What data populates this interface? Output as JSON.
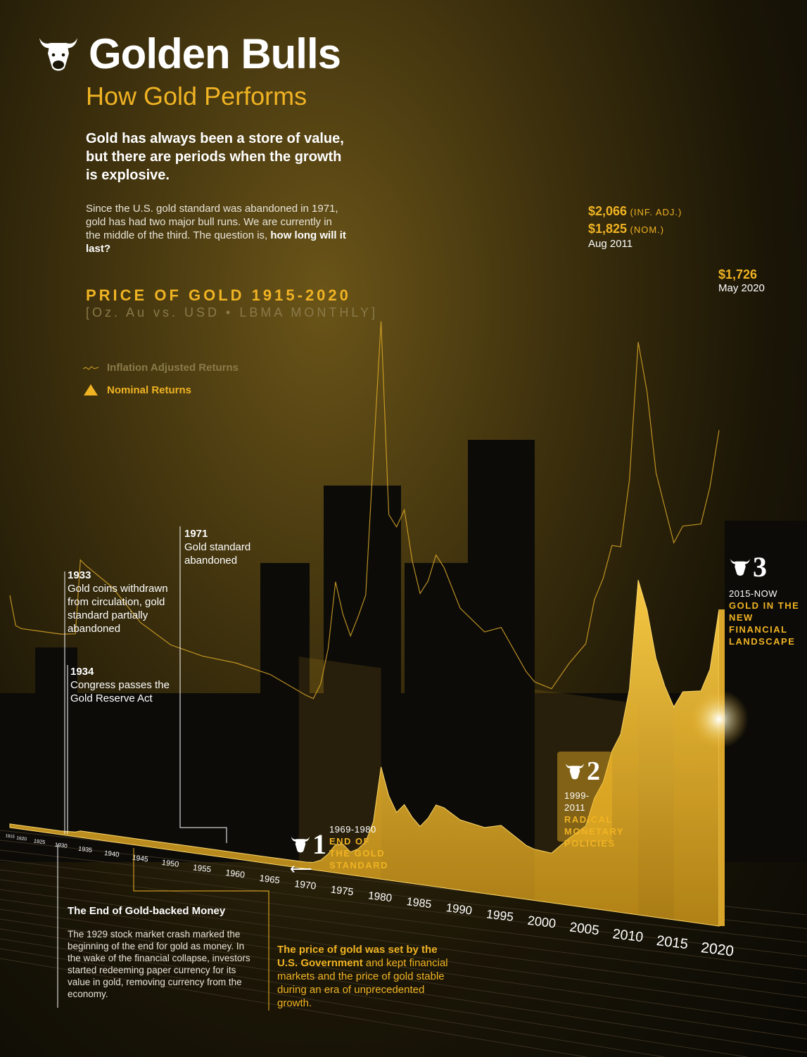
{
  "header": {
    "title": "Golden Bulls",
    "subtitle": "How Gold Performs",
    "lead": "Gold has always been a store of value, but there are periods when the growth is explosive.",
    "intro_pre": "Since the U.S. gold standard was abandoned in 1971, gold has had two major bull runs. We are currently in the middle of the third. The question is,",
    "intro_bold": "how long will it last?"
  },
  "chart_header": {
    "title": "PRICE OF GOLD 1915-2020",
    "subtitle": "[Oz. Au vs. USD • LBMA MONTHLY]"
  },
  "legend": {
    "inflation": "Inflation Adjusted Returns",
    "nominal": "Nominal Returns"
  },
  "annotations": {
    "a1933": {
      "year": "1933",
      "text": "Gold coins withdrawn from circulation, gold standard partially abandoned"
    },
    "a1934": {
      "year": "1934",
      "text": "Congress passes the Gold Reserve Act"
    },
    "a1971": {
      "year": "1971",
      "text": "Gold standard abandoned"
    }
  },
  "peaks": {
    "peak2011": {
      "inf_value": "$2,066",
      "inf_label": "(INF. ADJ.)",
      "nom_value": "$1,825",
      "nom_label": "(NOM.)",
      "date": "Aug 2011"
    },
    "peak2020": {
      "value": "$1,726",
      "date": "May 2020"
    }
  },
  "periods": [
    {
      "number": "1",
      "years": "1969-1980",
      "name": "END OF THE GOLD STANDARD"
    },
    {
      "number": "2",
      "years": "1999-2011",
      "name": "RADICAL MONETARY POLICIES"
    },
    {
      "number": "3",
      "years": "2015-NOW",
      "name": "GOLD IN THE NEW FINANCIAL LANDSCAPE"
    }
  ],
  "notes": {
    "end_title": "The End of Gold-backed Money",
    "end_text": "The 1929 stock market crash marked the beginning of the end for gold as money. In the wake of the financial collapse, investors started redeeming paper currency for its value in gold, removing currency from the economy.",
    "gov_bold": "The price of gold was set by the U.S. Government",
    "gov_text": "and kept financial markets and the price of gold stable during an era of unprecedented growth."
  },
  "colors": {
    "gold": "#f0b323",
    "gold_dark": "#c8901a",
    "background": "#0d0b06"
  },
  "chart_data": {
    "type": "area",
    "title": "PRICE OF GOLD 1915-2020",
    "subtitle": "[Oz. Au vs. USD • LBMA MONTHLY]",
    "xlabel": "",
    "ylabel": "",
    "x_ticks": [
      "1915",
      "1920",
      "1925",
      "1930",
      "1935",
      "1940",
      "1945",
      "1950",
      "1955",
      "1960",
      "1965",
      "1970",
      "1975",
      "1980",
      "1985",
      "1990",
      "1995",
      "2000",
      "2005",
      "2010",
      "2015",
      "2020"
    ],
    "ylim": [
      0,
      2100
    ],
    "series": [
      {
        "name": "Inflation Adjusted Returns",
        "x": [
          1915,
          1918,
          1920,
          1925,
          1930,
          1933,
          1934,
          1935,
          1940,
          1945,
          1950,
          1955,
          1960,
          1965,
          1970,
          1971,
          1972,
          1973,
          1974,
          1975,
          1976,
          1977,
          1978,
          1979,
          1980,
          1981,
          1982,
          1983,
          1984,
          1985,
          1986,
          1987,
          1988,
          1990,
          1993,
          1995,
          1998,
          1999,
          2001,
          2003,
          2005,
          2006,
          2007,
          2008,
          2009,
          2010,
          2011,
          2012,
          2013,
          2014,
          2015,
          2016,
          2018,
          2019,
          2020
        ],
        "values": [
          560,
          430,
          420,
          420,
          420,
          430,
          760,
          740,
          660,
          520,
          440,
          410,
          400,
          370,
          300,
          290,
          360,
          520,
          820,
          680,
          590,
          680,
          780,
          1400,
          2000,
          1150,
          1100,
          1180,
          960,
          820,
          880,
          1000,
          950,
          780,
          690,
          720,
          540,
          500,
          480,
          600,
          700,
          900,
          1000,
          1150,
          1150,
          1450,
          2066,
          1850,
          1500,
          1350,
          1200,
          1280,
          1300,
          1470,
          1726
        ]
      },
      {
        "name": "Nominal Returns",
        "x": [
          1915,
          1920,
          1925,
          1930,
          1933,
          1934,
          1940,
          1945,
          1950,
          1955,
          1960,
          1965,
          1970,
          1971,
          1972,
          1973,
          1974,
          1975,
          1976,
          1977,
          1978,
          1979,
          1980,
          1981,
          1982,
          1983,
          1984,
          1985,
          1986,
          1987,
          1988,
          1990,
          1993,
          1995,
          1998,
          1999,
          2001,
          2003,
          2005,
          2006,
          2007,
          2008,
          2009,
          2010,
          2011,
          2012,
          2013,
          2014,
          2015,
          2016,
          2018,
          2019,
          2020
        ],
        "values": [
          20,
          20,
          20,
          20,
          26,
          35,
          35,
          35,
          35,
          35,
          35,
          35,
          36,
          40,
          58,
          97,
          154,
          161,
          125,
          148,
          193,
          307,
          612,
          460,
          376,
          424,
          361,
          317,
          368,
          446,
          437,
          383,
          360,
          384,
          294,
          279,
          271,
          363,
          445,
          604,
          697,
          872,
          972,
          1224,
          1825,
          1669,
          1411,
          1266,
          1160,
          1250,
          1268,
          1393,
          1726
        ]
      }
    ],
    "periods": [
      {
        "name": "END OF THE GOLD STANDARD",
        "start": 1969,
        "end": 1980
      },
      {
        "name": "RADICAL MONETARY POLICIES",
        "start": 1999,
        "end": 2011
      },
      {
        "name": "GOLD IN THE NEW FINANCIAL LANDSCAPE",
        "start": 2015,
        "end": 2020
      }
    ],
    "grid": true,
    "legend_position": "top-left"
  }
}
